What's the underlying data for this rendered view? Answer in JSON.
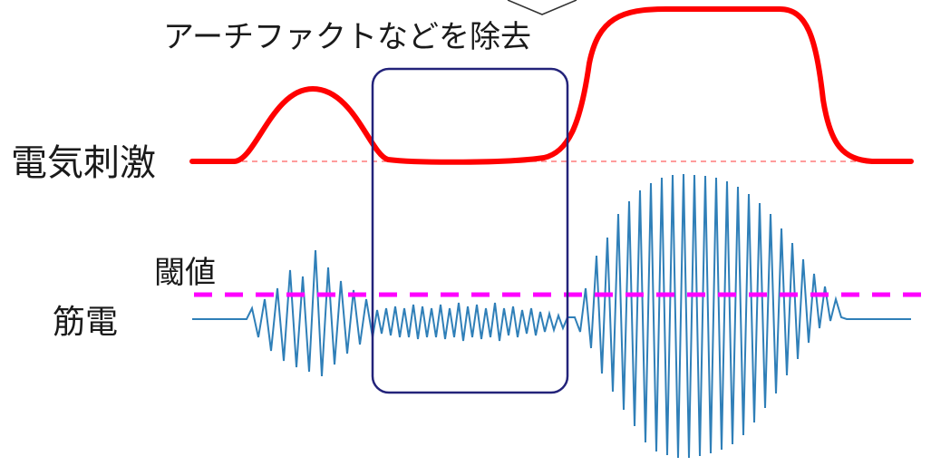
{
  "callout": {
    "text": "アーチファクトなどを除去"
  },
  "labels": {
    "stimulus": "電気刺激",
    "threshold": "閾値",
    "emg": "筋電"
  },
  "colors": {
    "stimulus_trace": "#ff0000",
    "stimulus_baseline": "#ff6060",
    "emg_trace": "#2f7fb8",
    "threshold_line": "#ff00ff",
    "selection_box": "#23237a",
    "text": "#1a1a1a"
  }
}
